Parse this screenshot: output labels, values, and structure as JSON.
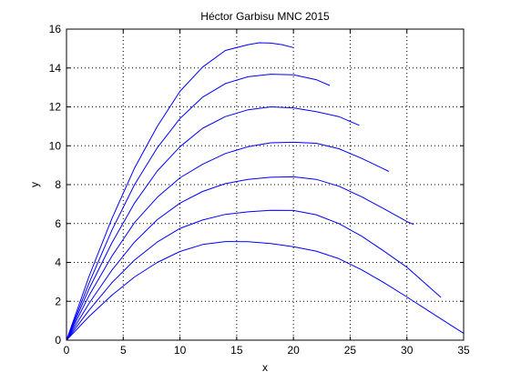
{
  "chart_data": {
    "type": "line",
    "title": "Héctor Garbisu MNC 2015",
    "xlabel": "x",
    "ylabel": "y",
    "xlim": [
      0,
      35
    ],
    "ylim": [
      0,
      16
    ],
    "xticks": [
      0,
      5,
      10,
      15,
      20,
      25,
      30,
      35
    ],
    "yticks": [
      0,
      2,
      4,
      6,
      8,
      10,
      12,
      14,
      16
    ],
    "grid": true,
    "grid_style": "dotted",
    "box": true,
    "colors": {
      "line": "#0000ff",
      "axis": "#000000",
      "grid": "#000000",
      "background": "#ffffff"
    },
    "series": [
      {
        "x": [
          0,
          2,
          4,
          6,
          8,
          10,
          12,
          14,
          16,
          18,
          20,
          22,
          24,
          26,
          28,
          30,
          32,
          34,
          35
        ],
        "y": [
          0,
          1.22,
          2.31,
          3.25,
          4.0,
          4.56,
          4.92,
          5.07,
          5.06,
          4.97,
          4.81,
          4.58,
          4.19,
          3.62,
          2.95,
          2.22,
          1.47,
          0.72,
          0.35
        ]
      },
      {
        "x": [
          0,
          2,
          4,
          6,
          8,
          10,
          12,
          14,
          16,
          18,
          20,
          22,
          24,
          26,
          28,
          30,
          32,
          33
        ],
        "y": [
          0,
          1.55,
          2.95,
          4.12,
          5.05,
          5.75,
          6.18,
          6.47,
          6.6,
          6.68,
          6.67,
          6.45,
          6.0,
          5.35,
          4.57,
          3.75,
          2.72,
          2.2
        ]
      },
      {
        "x": [
          0,
          2,
          4,
          6,
          8,
          10,
          12,
          14,
          16,
          18,
          20,
          22,
          24,
          26,
          28,
          30,
          30.6
        ],
        "y": [
          0,
          1.9,
          3.6,
          5.05,
          6.2,
          7.05,
          7.65,
          8.05,
          8.27,
          8.38,
          8.4,
          8.27,
          7.92,
          7.38,
          6.75,
          6.1,
          5.95
        ]
      },
      {
        "x": [
          0,
          2,
          4,
          6,
          8,
          10,
          12,
          14,
          16,
          18,
          20,
          22,
          24,
          26,
          28,
          28.4
        ],
        "y": [
          0,
          2.3,
          4.32,
          6.05,
          7.35,
          8.35,
          9.05,
          9.6,
          9.95,
          10.15,
          10.18,
          10.13,
          9.85,
          9.35,
          8.8,
          8.68
        ]
      },
      {
        "x": [
          0,
          2,
          4,
          6,
          8,
          10,
          12,
          14,
          16,
          18,
          20,
          22,
          24,
          25.8
        ],
        "y": [
          0,
          2.65,
          5.0,
          7.05,
          8.7,
          9.95,
          10.9,
          11.5,
          11.85,
          12.0,
          11.95,
          11.75,
          11.5,
          11.05
        ]
      },
      {
        "x": [
          0,
          2,
          4,
          6,
          8,
          10,
          12,
          14,
          16,
          18,
          20,
          22,
          23.2
        ],
        "y": [
          0,
          2.95,
          5.65,
          8.0,
          9.9,
          11.4,
          12.5,
          13.2,
          13.55,
          13.68,
          13.65,
          13.4,
          13.1
        ]
      },
      {
        "x": [
          0,
          2,
          4,
          6,
          8,
          10,
          12,
          14,
          16,
          17,
          18,
          19,
          20
        ],
        "y": [
          0,
          3.3,
          6.25,
          8.85,
          11.0,
          12.8,
          14.05,
          14.9,
          15.2,
          15.3,
          15.28,
          15.2,
          15.05
        ]
      }
    ]
  }
}
